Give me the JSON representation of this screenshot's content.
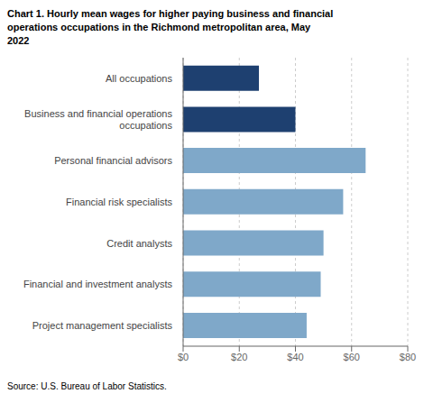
{
  "chart_data": {
    "type": "bar",
    "orientation": "horizontal",
    "title": "Chart 1. Hourly mean wages for higher paying business and financial\noperations occupations in the Richmond metropolitan area, May\n2022",
    "categories": [
      "Project management specialists",
      "Financial and investment analysts",
      "Credit analysts",
      "Financial risk specialists",
      "Personal financial advisors",
      "Business and financial operations\noccupations",
      "All occupations"
    ],
    "values": [
      44,
      49,
      50,
      57,
      65,
      40,
      27
    ],
    "colors": [
      "#7fa8c9",
      "#7fa8c9",
      "#7fa8c9",
      "#7fa8c9",
      "#7fa8c9",
      "#1e4070",
      "#1e4070"
    ],
    "xlim": [
      0,
      80
    ],
    "xticks": [
      {
        "value": 0,
        "label": "$0"
      },
      {
        "value": 20,
        "label": "$20"
      },
      {
        "value": 40,
        "label": "$40"
      },
      {
        "value": 60,
        "label": "$60"
      },
      {
        "value": 80,
        "label": "$80"
      }
    ],
    "grid": true,
    "annotations": [
      "Source: U.S. Bureau of Labor Statistics."
    ]
  }
}
